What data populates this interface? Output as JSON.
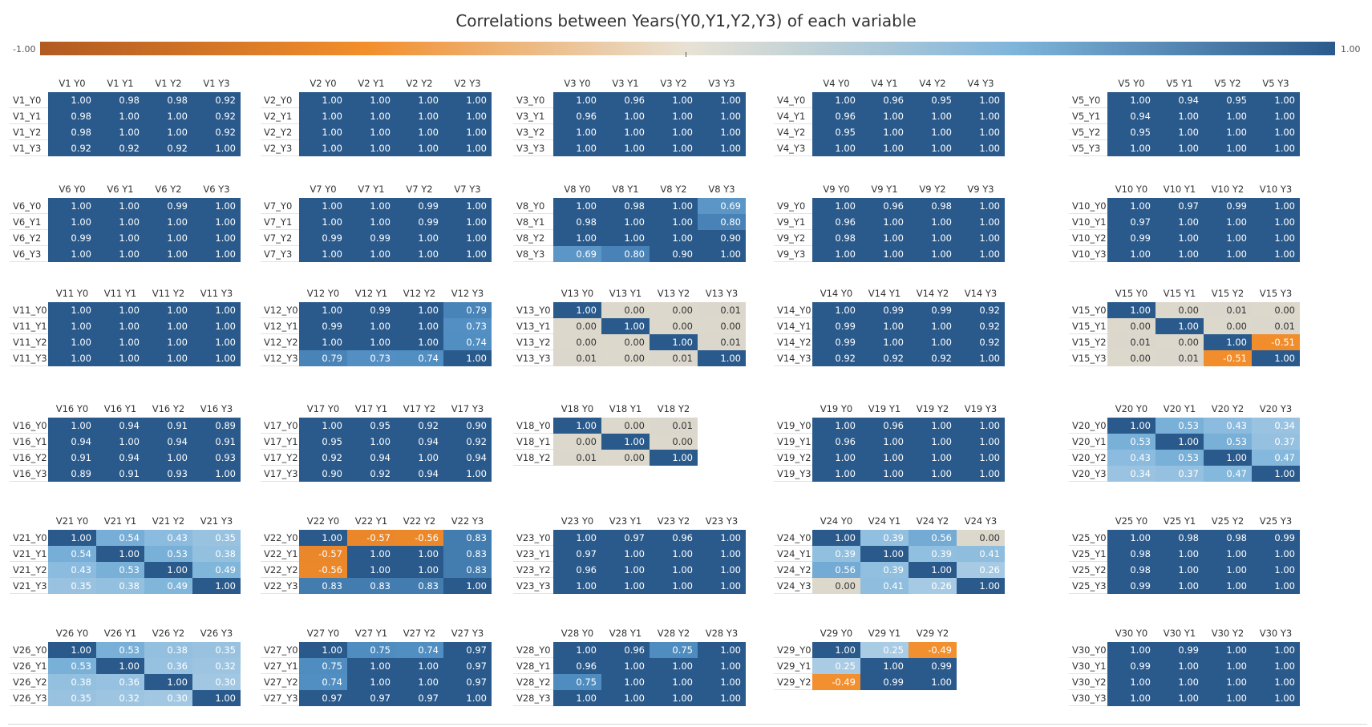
{
  "title": "Correlations between Years(Y0,Y1,Y2,Y3) of each variable",
  "legend": {
    "min_label": "-1.00",
    "max_label": "1.00",
    "min": -1,
    "max": 1,
    "center": 0,
    "colors": {
      "negative": "#b15a21",
      "mid_orange": "#f28e2b",
      "center": "#e8e2d4",
      "mid_blue": "#7fb5db",
      "positive": "#2a5a8c"
    }
  },
  "chart_data": {
    "type": "heatmap",
    "title": "Correlations between Years(Y0,Y1,Y2,Y3) of each variable",
    "color_range": [
      -1,
      1
    ],
    "matrices": [
      {
        "var": "V1",
        "cols": [
          "V1 Y0",
          "V1 Y1",
          "V1 Y2",
          "V1 Y3"
        ],
        "rows": [
          "V1_Y0",
          "V1_Y1",
          "V1_Y2",
          "V1_Y3"
        ],
        "values": [
          [
            1.0,
            0.98,
            0.98,
            0.92
          ],
          [
            0.98,
            1.0,
            1.0,
            0.92
          ],
          [
            0.98,
            1.0,
            1.0,
            0.92
          ],
          [
            0.92,
            0.92,
            0.92,
            1.0
          ]
        ]
      },
      {
        "var": "V2",
        "cols": [
          "V2 Y0",
          "V2 Y1",
          "V2 Y2",
          "V2 Y3"
        ],
        "rows": [
          "V2_Y0",
          "V2_Y1",
          "V2_Y2",
          "V2_Y3"
        ],
        "values": [
          [
            1.0,
            1.0,
            1.0,
            1.0
          ],
          [
            1.0,
            1.0,
            1.0,
            1.0
          ],
          [
            1.0,
            1.0,
            1.0,
            1.0
          ],
          [
            1.0,
            1.0,
            1.0,
            1.0
          ]
        ]
      },
      {
        "var": "V3",
        "cols": [
          "V3 Y0",
          "V3 Y1",
          "V3 Y2",
          "V3 Y3"
        ],
        "rows": [
          "V3_Y0",
          "V3_Y1",
          "V3_Y2",
          "V3_Y3"
        ],
        "values": [
          [
            1.0,
            0.96,
            1.0,
            1.0
          ],
          [
            0.96,
            1.0,
            1.0,
            1.0
          ],
          [
            1.0,
            1.0,
            1.0,
            1.0
          ],
          [
            1.0,
            1.0,
            1.0,
            1.0
          ]
        ]
      },
      {
        "var": "V4",
        "cols": [
          "V4 Y0",
          "V4 Y1",
          "V4 Y2",
          "V4 Y3"
        ],
        "rows": [
          "V4_Y0",
          "V4_Y1",
          "V4_Y2",
          "V4_Y3"
        ],
        "values": [
          [
            1.0,
            0.96,
            0.95,
            1.0
          ],
          [
            0.96,
            1.0,
            1.0,
            1.0
          ],
          [
            0.95,
            1.0,
            1.0,
            1.0
          ],
          [
            1.0,
            1.0,
            1.0,
            1.0
          ]
        ]
      },
      {
        "var": "V5",
        "cols": [
          "V5 Y0",
          "V5 Y1",
          "V5 Y2",
          "V5 Y3"
        ],
        "rows": [
          "V5_Y0",
          "V5_Y1",
          "V5_Y2",
          "V5_Y3"
        ],
        "values": [
          [
            1.0,
            0.94,
            0.95,
            1.0
          ],
          [
            0.94,
            1.0,
            1.0,
            1.0
          ],
          [
            0.95,
            1.0,
            1.0,
            1.0
          ],
          [
            1.0,
            1.0,
            1.0,
            1.0
          ]
        ]
      },
      {
        "var": "V6",
        "cols": [
          "V6 Y0",
          "V6 Y1",
          "V6 Y2",
          "V6 Y3"
        ],
        "rows": [
          "V6_Y0",
          "V6_Y1",
          "V6_Y2",
          "V6_Y3"
        ],
        "values": [
          [
            1.0,
            1.0,
            0.99,
            1.0
          ],
          [
            1.0,
            1.0,
            1.0,
            1.0
          ],
          [
            0.99,
            1.0,
            1.0,
            1.0
          ],
          [
            1.0,
            1.0,
            1.0,
            1.0
          ]
        ]
      },
      {
        "var": "V7",
        "cols": [
          "V7 Y0",
          "V7 Y1",
          "V7 Y2",
          "V7 Y3"
        ],
        "rows": [
          "V7_Y0",
          "V7_Y1",
          "V7_Y2",
          "V7_Y3"
        ],
        "values": [
          [
            1.0,
            1.0,
            0.99,
            1.0
          ],
          [
            1.0,
            1.0,
            0.99,
            1.0
          ],
          [
            0.99,
            0.99,
            1.0,
            1.0
          ],
          [
            1.0,
            1.0,
            1.0,
            1.0
          ]
        ]
      },
      {
        "var": "V8",
        "cols": [
          "V8 Y0",
          "V8 Y1",
          "V8 Y2",
          "V8 Y3"
        ],
        "rows": [
          "V8_Y0",
          "V8_Y1",
          "V8_Y2",
          "V8_Y3"
        ],
        "values": [
          [
            1.0,
            0.98,
            1.0,
            0.69
          ],
          [
            0.98,
            1.0,
            1.0,
            0.8
          ],
          [
            1.0,
            1.0,
            1.0,
            0.9
          ],
          [
            0.69,
            0.8,
            0.9,
            1.0
          ]
        ]
      },
      {
        "var": "V9",
        "cols": [
          "V9 Y0",
          "V9 Y1",
          "V9 Y2",
          "V9 Y3"
        ],
        "rows": [
          "V9_Y0",
          "V9_Y1",
          "V9_Y2",
          "V9_Y3"
        ],
        "values": [
          [
            1.0,
            0.96,
            0.98,
            1.0
          ],
          [
            0.96,
            1.0,
            1.0,
            1.0
          ],
          [
            0.98,
            1.0,
            1.0,
            1.0
          ],
          [
            1.0,
            1.0,
            1.0,
            1.0
          ]
        ]
      },
      {
        "var": "V10",
        "cols": [
          "V10 Y0",
          "V10 Y1",
          "V10 Y2",
          "V10 Y3"
        ],
        "rows": [
          "V10_Y0",
          "V10_Y1",
          "V10_Y2",
          "V10_Y3"
        ],
        "values": [
          [
            1.0,
            0.97,
            0.99,
            1.0
          ],
          [
            0.97,
            1.0,
            1.0,
            1.0
          ],
          [
            0.99,
            1.0,
            1.0,
            1.0
          ],
          [
            1.0,
            1.0,
            1.0,
            1.0
          ]
        ]
      },
      {
        "var": "V11",
        "cols": [
          "V11 Y0",
          "V11 Y1",
          "V11 Y2",
          "V11 Y3"
        ],
        "rows": [
          "V11_Y0",
          "V11_Y1",
          "V11_Y2",
          "V11_Y3"
        ],
        "values": [
          [
            1.0,
            1.0,
            1.0,
            1.0
          ],
          [
            1.0,
            1.0,
            1.0,
            1.0
          ],
          [
            1.0,
            1.0,
            1.0,
            1.0
          ],
          [
            1.0,
            1.0,
            1.0,
            1.0
          ]
        ]
      },
      {
        "var": "V12",
        "cols": [
          "V12 Y0",
          "V12 Y1",
          "V12 Y2",
          "V12 Y3"
        ],
        "rows": [
          "V12_Y0",
          "V12_Y1",
          "V12_Y2",
          "V12_Y3"
        ],
        "values": [
          [
            1.0,
            0.99,
            1.0,
            0.79
          ],
          [
            0.99,
            1.0,
            1.0,
            0.73
          ],
          [
            1.0,
            1.0,
            1.0,
            0.74
          ],
          [
            0.79,
            0.73,
            0.74,
            1.0
          ]
        ]
      },
      {
        "var": "V13",
        "cols": [
          "V13 Y0",
          "V13 Y1",
          "V13 Y2",
          "V13 Y3"
        ],
        "rows": [
          "V13_Y0",
          "V13_Y1",
          "V13_Y2",
          "V13_Y3"
        ],
        "values": [
          [
            1.0,
            0.0,
            0.0,
            0.01
          ],
          [
            0.0,
            1.0,
            0.0,
            0.0
          ],
          [
            0.0,
            0.0,
            1.0,
            0.01
          ],
          [
            0.01,
            0.0,
            0.01,
            1.0
          ]
        ]
      },
      {
        "var": "V14",
        "cols": [
          "V14 Y0",
          "V14 Y1",
          "V14 Y2",
          "V14 Y3"
        ],
        "rows": [
          "V14_Y0",
          "V14_Y1",
          "V14_Y2",
          "V14_Y3"
        ],
        "values": [
          [
            1.0,
            0.99,
            0.99,
            0.92
          ],
          [
            0.99,
            1.0,
            1.0,
            0.92
          ],
          [
            0.99,
            1.0,
            1.0,
            0.92
          ],
          [
            0.92,
            0.92,
            0.92,
            1.0
          ]
        ]
      },
      {
        "var": "V15",
        "cols": [
          "V15 Y0",
          "V15 Y1",
          "V15 Y2",
          "V15 Y3"
        ],
        "rows": [
          "V15_Y0",
          "V15_Y1",
          "V15_Y2",
          "V15_Y3"
        ],
        "values": [
          [
            1.0,
            0.0,
            0.01,
            0.0
          ],
          [
            0.0,
            1.0,
            0.0,
            0.01
          ],
          [
            0.01,
            0.0,
            1.0,
            -0.51
          ],
          [
            0.0,
            0.01,
            -0.51,
            1.0
          ]
        ]
      },
      {
        "var": "V16",
        "cols": [
          "V16 Y0",
          "V16 Y1",
          "V16 Y2",
          "V16 Y3"
        ],
        "rows": [
          "V16_Y0",
          "V16_Y1",
          "V16_Y2",
          "V16_Y3"
        ],
        "values": [
          [
            1.0,
            0.94,
            0.91,
            0.89
          ],
          [
            0.94,
            1.0,
            0.94,
            0.91
          ],
          [
            0.91,
            0.94,
            1.0,
            0.93
          ],
          [
            0.89,
            0.91,
            0.93,
            1.0
          ]
        ]
      },
      {
        "var": "V17",
        "cols": [
          "V17 Y0",
          "V17 Y1",
          "V17 Y2",
          "V17 Y3"
        ],
        "rows": [
          "V17_Y0",
          "V17_Y1",
          "V17_Y2",
          "V17_Y3"
        ],
        "values": [
          [
            1.0,
            0.95,
            0.92,
            0.9
          ],
          [
            0.95,
            1.0,
            0.94,
            0.92
          ],
          [
            0.92,
            0.94,
            1.0,
            0.94
          ],
          [
            0.9,
            0.92,
            0.94,
            1.0
          ]
        ]
      },
      {
        "var": "V18",
        "cols": [
          "V18 Y0",
          "V18 Y1",
          "V18 Y2"
        ],
        "rows": [
          "V18_Y0",
          "V18_Y1",
          "V18_Y2"
        ],
        "values": [
          [
            1.0,
            0.0,
            0.01
          ],
          [
            0.0,
            1.0,
            0.0
          ],
          [
            0.01,
            0.0,
            1.0
          ]
        ]
      },
      {
        "var": "V19",
        "cols": [
          "V19 Y0",
          "V19 Y1",
          "V19 Y2",
          "V19 Y3"
        ],
        "rows": [
          "V19_Y0",
          "V19_Y1",
          "V19_Y2",
          "V19_Y3"
        ],
        "values": [
          [
            1.0,
            0.96,
            1.0,
            1.0
          ],
          [
            0.96,
            1.0,
            1.0,
            1.0
          ],
          [
            1.0,
            1.0,
            1.0,
            1.0
          ],
          [
            1.0,
            1.0,
            1.0,
            1.0
          ]
        ]
      },
      {
        "var": "V20",
        "cols": [
          "V20 Y0",
          "V20 Y1",
          "V20 Y2",
          "V20 Y3"
        ],
        "rows": [
          "V20_Y0",
          "V20_Y1",
          "V20_Y2",
          "V20_Y3"
        ],
        "values": [
          [
            1.0,
            0.53,
            0.43,
            0.34
          ],
          [
            0.53,
            1.0,
            0.53,
            0.37
          ],
          [
            0.43,
            0.53,
            1.0,
            0.47
          ],
          [
            0.34,
            0.37,
            0.47,
            1.0
          ]
        ]
      },
      {
        "var": "V21",
        "cols": [
          "V21 Y0",
          "V21 Y1",
          "V21 Y2",
          "V21 Y3"
        ],
        "rows": [
          "V21_Y0",
          "V21_Y1",
          "V21_Y2",
          "V21_Y3"
        ],
        "values": [
          [
            1.0,
            0.54,
            0.43,
            0.35
          ],
          [
            0.54,
            1.0,
            0.53,
            0.38
          ],
          [
            0.43,
            0.53,
            1.0,
            0.49
          ],
          [
            0.35,
            0.38,
            0.49,
            1.0
          ]
        ]
      },
      {
        "var": "V22",
        "cols": [
          "V22 Y0",
          "V22 Y1",
          "V22 Y2",
          "V22 Y3"
        ],
        "rows": [
          "V22_Y0",
          "V22_Y1",
          "V22_Y2",
          "V22_Y3"
        ],
        "values": [
          [
            1.0,
            -0.57,
            -0.56,
            0.83
          ],
          [
            -0.57,
            1.0,
            1.0,
            0.83
          ],
          [
            -0.56,
            1.0,
            1.0,
            0.83
          ],
          [
            0.83,
            0.83,
            0.83,
            1.0
          ]
        ]
      },
      {
        "var": "V23",
        "cols": [
          "V23 Y0",
          "V23 Y1",
          "V23 Y2",
          "V23 Y3"
        ],
        "rows": [
          "V23_Y0",
          "V23_Y1",
          "V23_Y2",
          "V23_Y3"
        ],
        "values": [
          [
            1.0,
            0.97,
            0.96,
            1.0
          ],
          [
            0.97,
            1.0,
            1.0,
            1.0
          ],
          [
            0.96,
            1.0,
            1.0,
            1.0
          ],
          [
            1.0,
            1.0,
            1.0,
            1.0
          ]
        ]
      },
      {
        "var": "V24",
        "cols": [
          "V24 Y0",
          "V24 Y1",
          "V24 Y2",
          "V24 Y3"
        ],
        "rows": [
          "V24_Y0",
          "V24_Y1",
          "V24_Y2",
          "V24_Y3"
        ],
        "values": [
          [
            1.0,
            0.39,
            0.56,
            0.0
          ],
          [
            0.39,
            1.0,
            0.39,
            0.41
          ],
          [
            0.56,
            0.39,
            1.0,
            0.26
          ],
          [
            0.0,
            0.41,
            0.26,
            1.0
          ]
        ]
      },
      {
        "var": "V25",
        "cols": [
          "V25 Y0",
          "V25 Y1",
          "V25 Y2",
          "V25 Y3"
        ],
        "rows": [
          "V25_Y0",
          "V25_Y1",
          "V25_Y2",
          "V25_Y3"
        ],
        "values": [
          [
            1.0,
            0.98,
            0.98,
            0.99
          ],
          [
            0.98,
            1.0,
            1.0,
            1.0
          ],
          [
            0.98,
            1.0,
            1.0,
            1.0
          ],
          [
            0.99,
            1.0,
            1.0,
            1.0
          ]
        ]
      },
      {
        "var": "V26",
        "cols": [
          "V26 Y0",
          "V26 Y1",
          "V26 Y2",
          "V26 Y3"
        ],
        "rows": [
          "V26_Y0",
          "V26_Y1",
          "V26_Y2",
          "V26_Y3"
        ],
        "values": [
          [
            1.0,
            0.53,
            0.38,
            0.35
          ],
          [
            0.53,
            1.0,
            0.36,
            0.32
          ],
          [
            0.38,
            0.36,
            1.0,
            0.3
          ],
          [
            0.35,
            0.32,
            0.3,
            1.0
          ]
        ]
      },
      {
        "var": "V27",
        "cols": [
          "V27 Y0",
          "V27 Y1",
          "V27 Y2",
          "V27 Y3"
        ],
        "rows": [
          "V27_Y0",
          "V27_Y1",
          "V27_Y2",
          "V27_Y3"
        ],
        "values": [
          [
            1.0,
            0.75,
            0.74,
            0.97
          ],
          [
            0.75,
            1.0,
            1.0,
            0.97
          ],
          [
            0.74,
            1.0,
            1.0,
            0.97
          ],
          [
            0.97,
            0.97,
            0.97,
            1.0
          ]
        ]
      },
      {
        "var": "V28",
        "cols": [
          "V28 Y0",
          "V28 Y1",
          "V28 Y2",
          "V28 Y3"
        ],
        "rows": [
          "V28_Y0",
          "V28_Y1",
          "V28_Y2",
          "V28_Y3"
        ],
        "values": [
          [
            1.0,
            0.96,
            0.75,
            1.0
          ],
          [
            0.96,
            1.0,
            1.0,
            1.0
          ],
          [
            0.75,
            1.0,
            1.0,
            1.0
          ],
          [
            1.0,
            1.0,
            1.0,
            1.0
          ]
        ]
      },
      {
        "var": "V29",
        "cols": [
          "V29 Y0",
          "V29 Y1",
          "V29 Y2"
        ],
        "rows": [
          "V29_Y0",
          "V29_Y1",
          "V29_Y2"
        ],
        "values": [
          [
            1.0,
            0.25,
            -0.49
          ],
          [
            0.25,
            1.0,
            0.99
          ],
          [
            -0.49,
            0.99,
            1.0
          ]
        ]
      },
      {
        "var": "V30",
        "cols": [
          "V30 Y0",
          "V30 Y1",
          "V30 Y2",
          "V30 Y3"
        ],
        "rows": [
          "V30_Y0",
          "V30_Y1",
          "V30_Y2",
          "V30_Y3"
        ],
        "values": [
          [
            1.0,
            0.99,
            1.0,
            1.0
          ],
          [
            0.99,
            1.0,
            1.0,
            1.0
          ],
          [
            1.0,
            1.0,
            1.0,
            1.0
          ],
          [
            1.0,
            1.0,
            1.0,
            1.0
          ]
        ]
      }
    ]
  }
}
